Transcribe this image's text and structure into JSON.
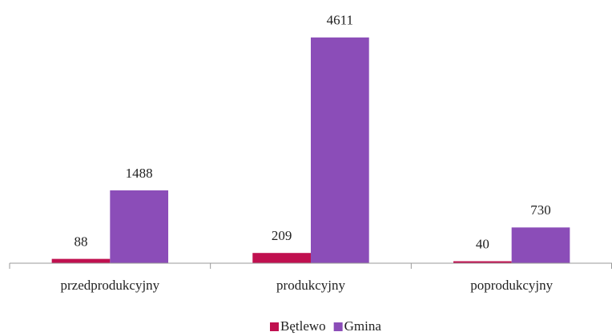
{
  "chart_data": {
    "type": "bar",
    "categories": [
      "przedprodukcyjny",
      "produkcyjny",
      "poprodukcyjny"
    ],
    "series": [
      {
        "name": "Bętlewo",
        "color": "#c0104f",
        "values": [
          88,
          209,
          40
        ]
      },
      {
        "name": "Gmina",
        "color": "#8b4db8",
        "values": [
          1488,
          4611,
          730
        ]
      }
    ],
    "ylim": [
      0,
      5000
    ],
    "legend": "bottom"
  }
}
